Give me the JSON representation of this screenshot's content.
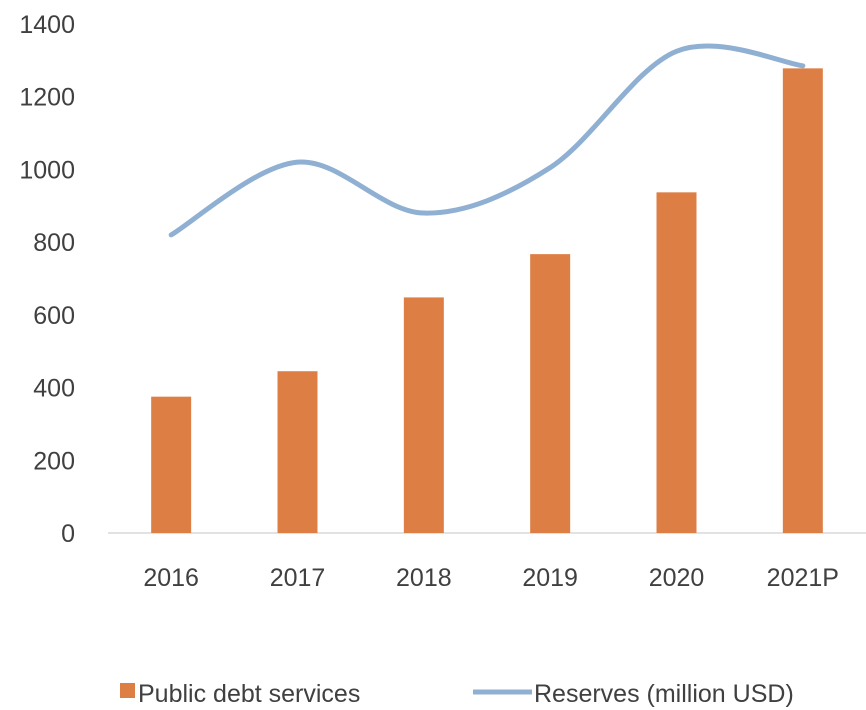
{
  "chart_data": {
    "type": "bar",
    "categories": [
      "2016",
      "2017",
      "2018",
      "2019",
      "2020",
      "2021P"
    ],
    "series": [
      {
        "name": "Public debt services",
        "type": "bar",
        "color": "#dd7f45",
        "values": [
          375,
          445,
          648,
          767,
          937,
          1278
        ]
      },
      {
        "name": "Reserves (million USD)",
        "type": "line",
        "smooth": true,
        "color": "#8fb0d2",
        "values": [
          820,
          1020,
          880,
          1005,
          1325,
          1285
        ]
      }
    ],
    "ylim": [
      0,
      1400
    ],
    "yticks": [
      "0",
      "200",
      "400",
      "600",
      "800",
      "1000",
      "1200",
      "1400"
    ],
    "grid": false,
    "legend": "bottom"
  }
}
